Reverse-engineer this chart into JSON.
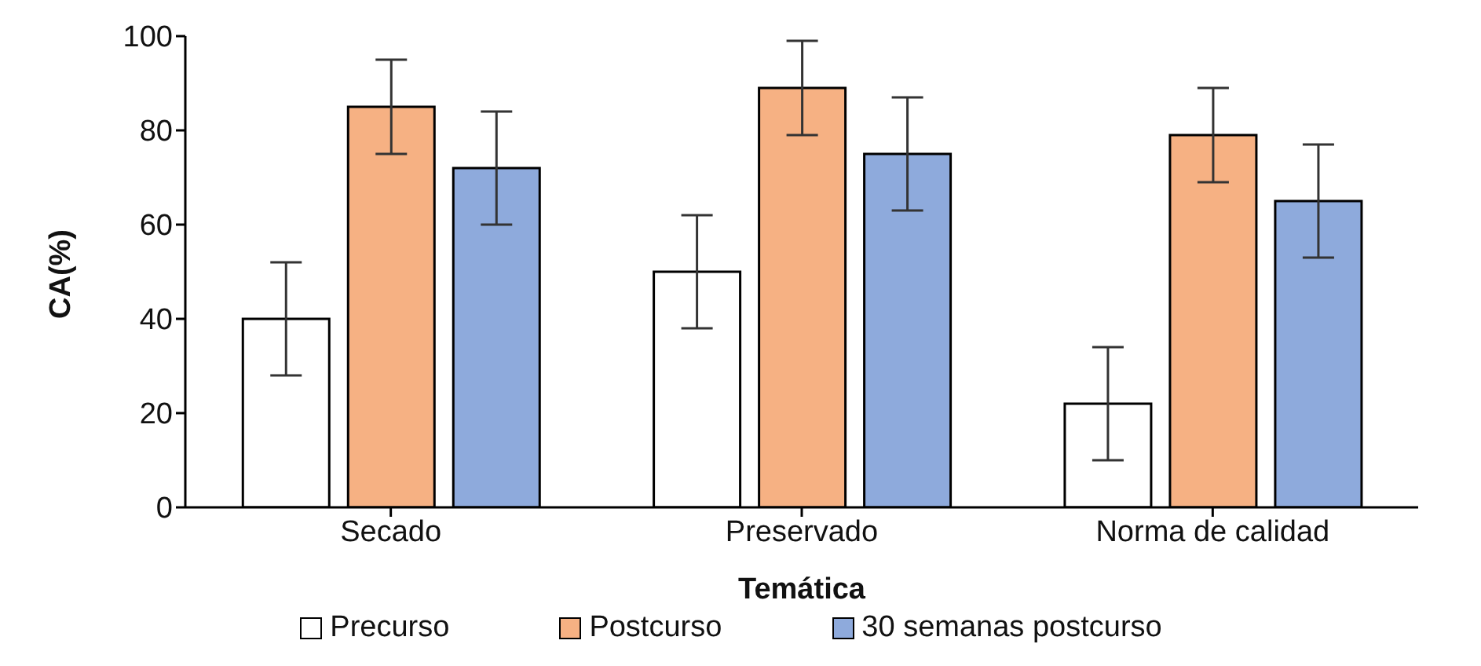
{
  "chart_data": {
    "type": "bar",
    "xlabel": "Temática",
    "ylabel": "CA(%)",
    "categories": [
      "Secado",
      "Preservado",
      "Norma de calidad"
    ],
    "series": [
      {
        "name": "Precurso",
        "color": "#ffffff",
        "values": [
          40,
          50,
          22
        ],
        "errors": [
          12,
          12,
          12
        ]
      },
      {
        "name": "Postcurso",
        "color": "#f6b183",
        "values": [
          85,
          89,
          79
        ],
        "errors": [
          10,
          10,
          10
        ]
      },
      {
        "name": "30 semanas postcurso",
        "color": "#8eaadc",
        "values": [
          72,
          75,
          65
        ],
        "errors": [
          12,
          12,
          12
        ]
      }
    ],
    "ylim": [
      0,
      100
    ],
    "yticks": [
      0,
      20,
      40,
      60,
      80,
      100
    ],
    "grid": false,
    "legend": "bottom"
  }
}
